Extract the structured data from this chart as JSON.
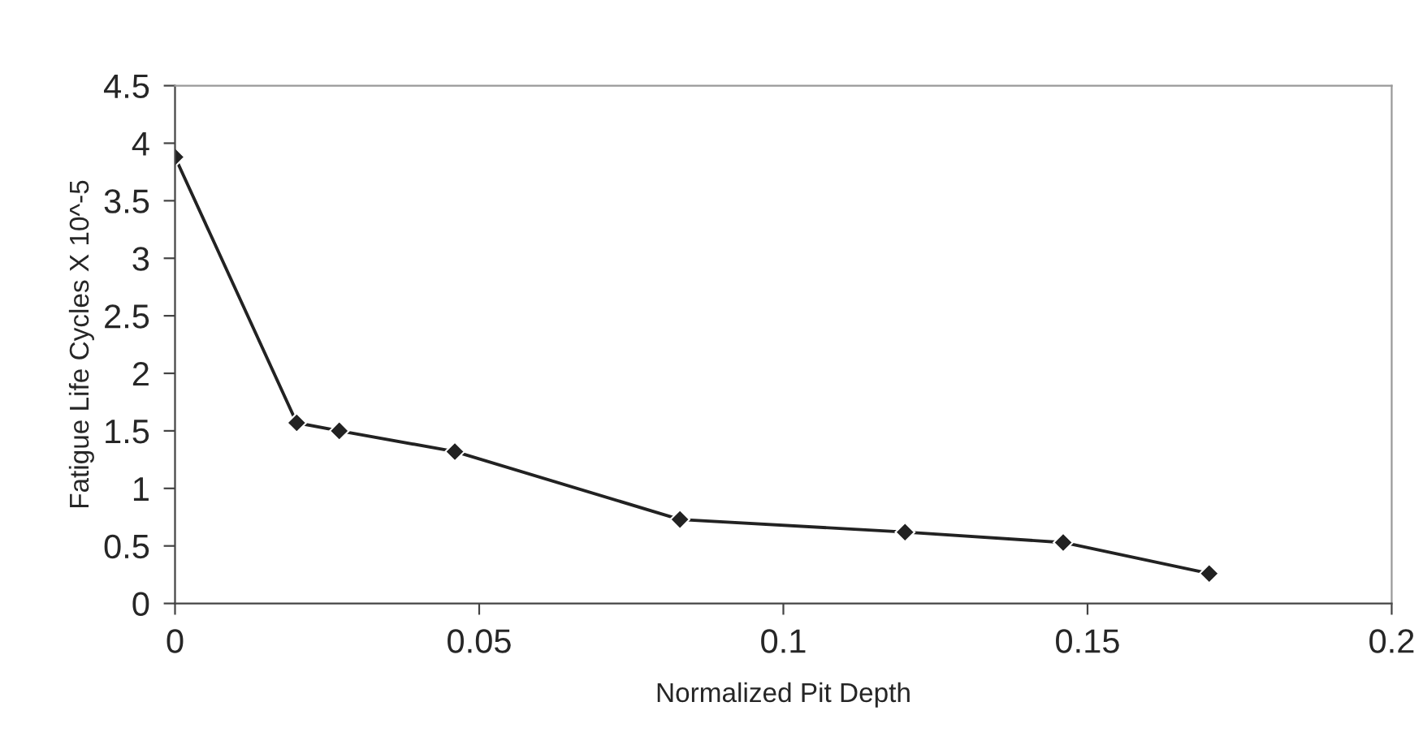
{
  "chart_data": {
    "type": "line",
    "xlabel": "Normalized Pit Depth",
    "ylabel": "Fatigue Life Cycles X 10^-5",
    "x": [
      0,
      0.02,
      0.027,
      0.046,
      0.083,
      0.12,
      0.146,
      0.17
    ],
    "series": [
      {
        "color": "#222222",
        "values": [
          3.88,
          1.57,
          1.5,
          1.32,
          0.73,
          0.62,
          0.53,
          0.26
        ]
      }
    ],
    "xlim": [
      0,
      0.2
    ],
    "xticks": [
      0,
      0.05,
      0.1,
      0.15,
      0.2
    ],
    "ylim": [
      0,
      4.5
    ],
    "yticks": [
      0,
      0.5,
      1,
      1.5,
      2,
      2.5,
      3,
      3.5,
      4,
      4.5
    ],
    "grid": false,
    "legend": false,
    "marker": "diamond",
    "line_style": "solid"
  }
}
